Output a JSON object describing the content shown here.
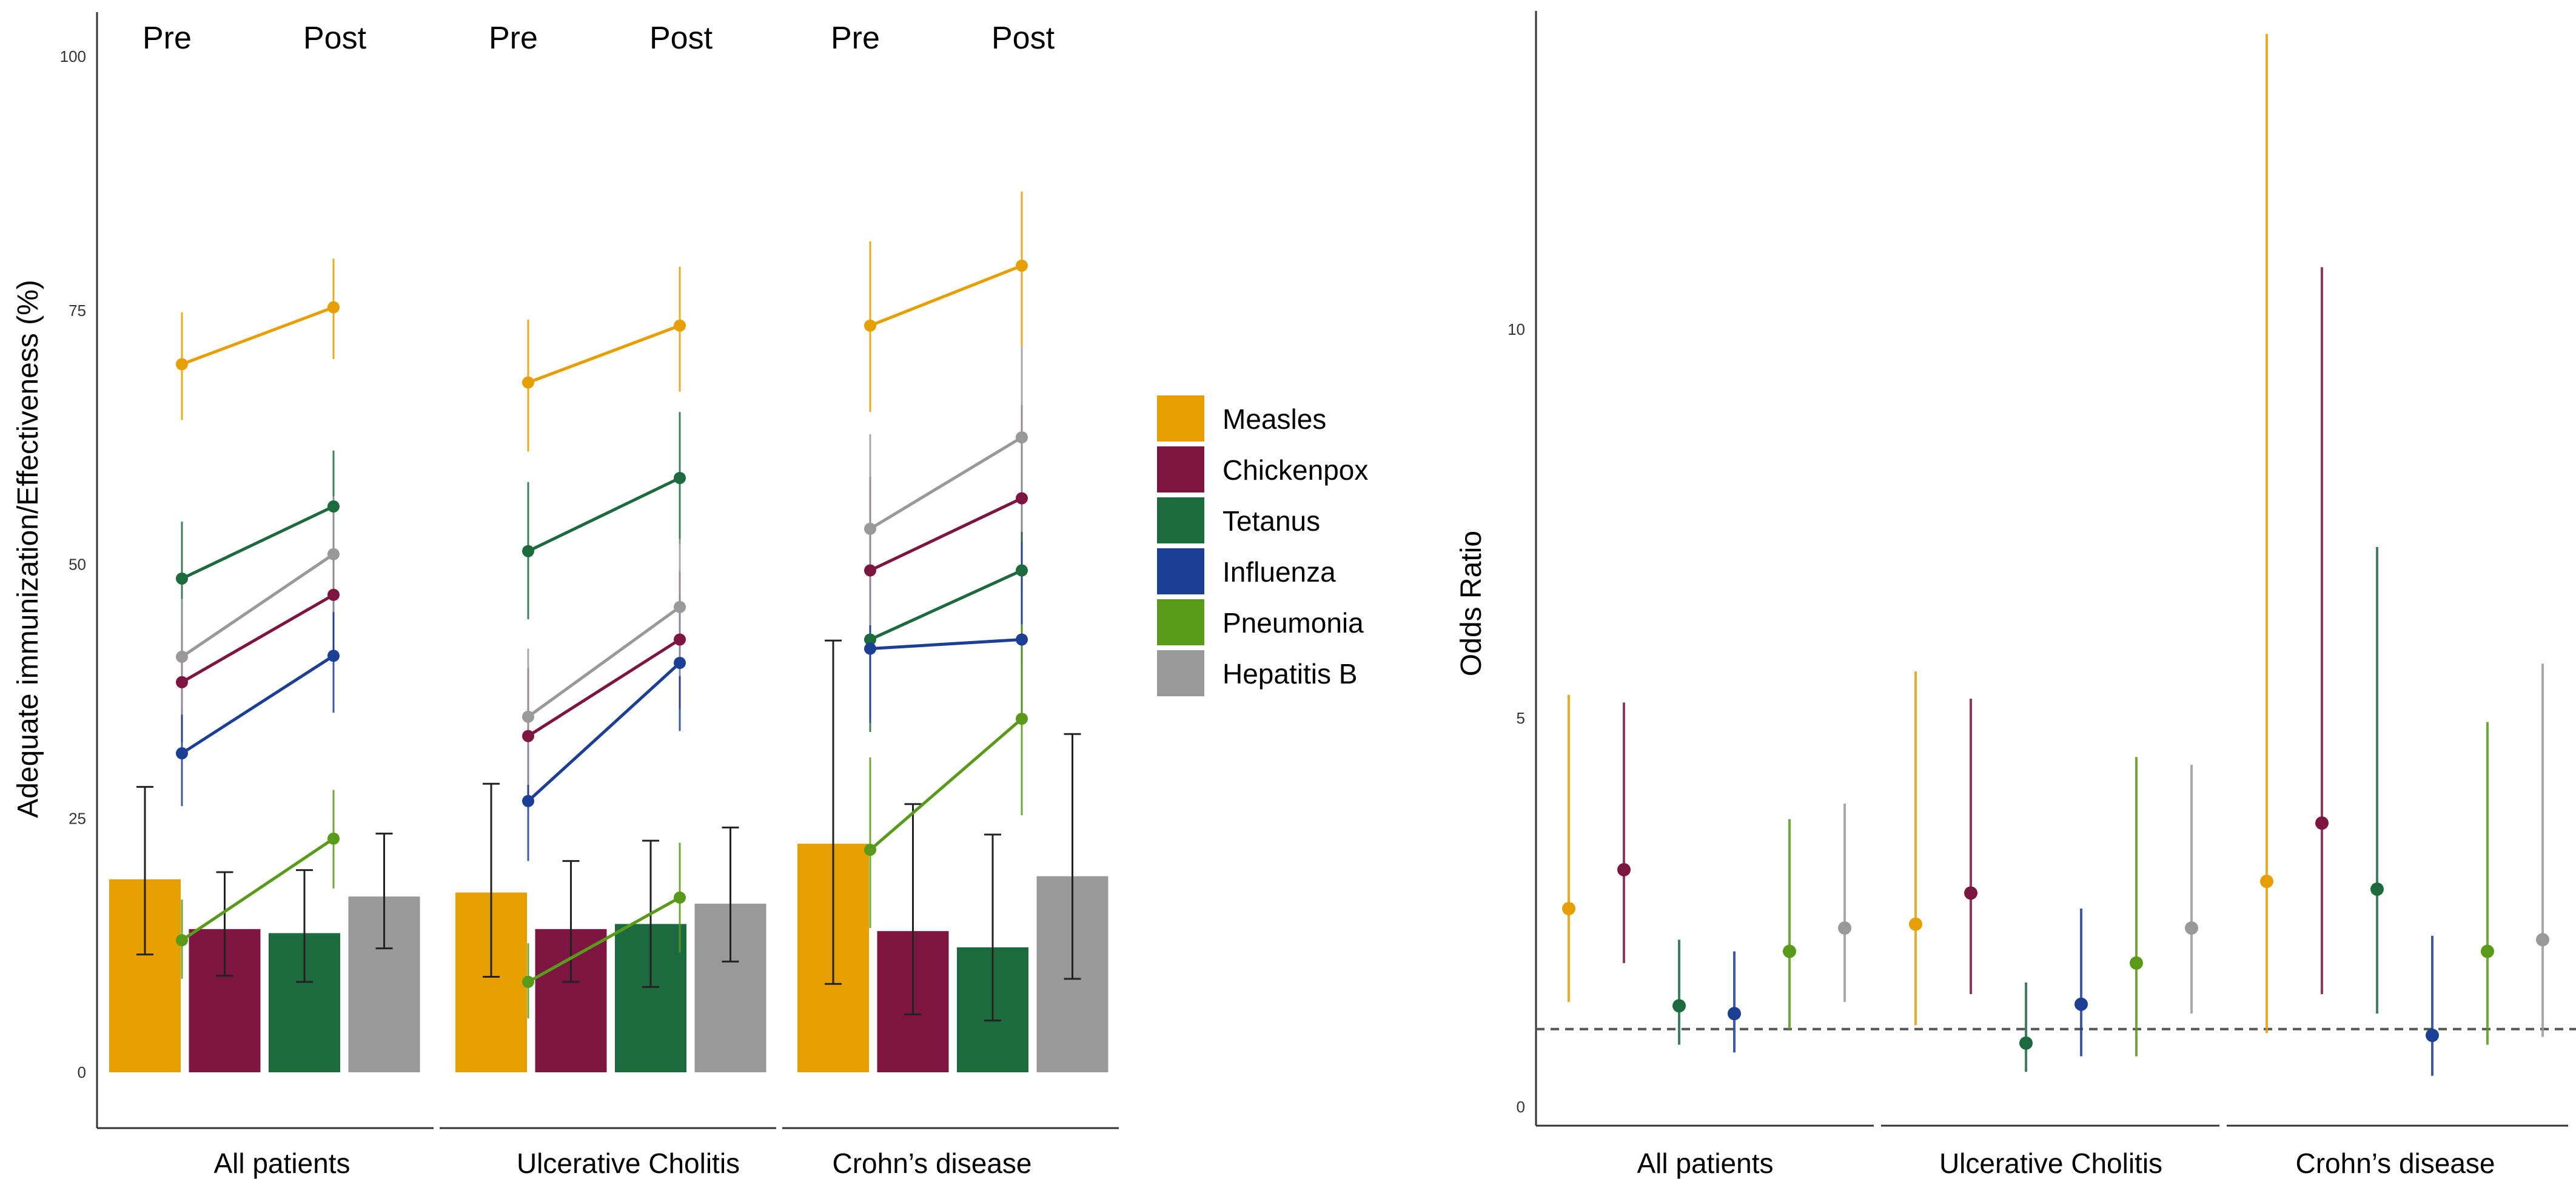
{
  "colors": {
    "Measles": "#E69F00",
    "Chickenpox": "#7D1541",
    "Tetanus": "#1D6A3F",
    "Influenza": "#1B3F94",
    "Pneumonia": "#5A9A1A",
    "Hepatitis B": "#999999"
  },
  "chart_data": [
    {
      "type": "line",
      "panel": "left",
      "title": "",
      "xlabel": "",
      "ylabel": "Adequate immunization/Effectiveness (%)",
      "ylim": [
        0,
        100
      ],
      "yticks": [
        "0",
        "25",
        "50",
        "75",
        "100"
      ],
      "groups": [
        "All patients",
        "Ulcerative Cholitis",
        "Crohn’s disease"
      ],
      "phases": [
        "Pre",
        "Post"
      ],
      "legend": [
        "Measles",
        "Chickenpox",
        "Tetanus",
        "Influenza",
        "Pneumonia",
        "Hepatitis B"
      ],
      "lines": [
        {
          "name": "Measles",
          "groups": [
            {
              "pre": 69.7,
              "pre_ci": [
                64.2,
                74.8
              ],
              "post": 75.3,
              "post_ci": [
                70.2,
                80.1
              ]
            },
            {
              "pre": 67.9,
              "pre_ci": [
                61.1,
                74.1
              ],
              "post": 73.5,
              "post_ci": [
                67.0,
                79.3
              ]
            },
            {
              "pre": 73.5,
              "pre_ci": [
                65.0,
                81.8
              ],
              "post": 79.4,
              "post_ci": [
                71.5,
                86.7
              ]
            }
          ]
        },
        {
          "name": "Chickenpox",
          "groups": [
            {
              "pre": 38.4,
              "pre_ci": [
                32.5,
                44.3
              ],
              "post": 47.0,
              "post_ci": [
                41.3,
                53.0
              ]
            },
            {
              "pre": 33.1,
              "pre_ci": [
                26.6,
                39.8
              ],
              "post": 42.6,
              "post_ci": [
                35.8,
                49.3
              ]
            },
            {
              "pre": 49.4,
              "pre_ci": [
                40.0,
                58.6
              ],
              "post": 56.5,
              "post_ci": [
                47.3,
                65.7
              ]
            }
          ]
        },
        {
          "name": "Tetanus",
          "groups": [
            {
              "pre": 48.6,
              "pre_ci": [
                43.0,
                54.2
              ],
              "post": 55.7,
              "post_ci": [
                50.3,
                61.2
              ]
            },
            {
              "pre": 51.3,
              "pre_ci": [
                44.6,
                58.1
              ],
              "post": 58.5,
              "post_ci": [
                52.0,
                65.0
              ]
            },
            {
              "pre": 42.6,
              "pre_ci": [
                33.5,
                52.0
              ],
              "post": 49.4,
              "post_ci": [
                40.1,
                58.6
              ]
            }
          ]
        },
        {
          "name": "Influenza",
          "groups": [
            {
              "pre": 31.4,
              "pre_ci": [
                26.2,
                36.2
              ],
              "post": 41.0,
              "post_ci": [
                35.4,
                46.8
              ]
            },
            {
              "pre": 26.7,
              "pre_ci": [
                20.8,
                32.4
              ],
              "post": 40.3,
              "post_ci": [
                33.6,
                47.0
              ]
            },
            {
              "pre": 41.7,
              "pre_ci": [
                34.4,
                49.0
              ],
              "post": 42.6,
              "post_ci": [
                34.8,
                52.2
              ]
            }
          ]
        },
        {
          "name": "Pneumonia",
          "groups": [
            {
              "pre": 13.0,
              "pre_ci": [
                9.2,
                17.0
              ],
              "post": 23.0,
              "post_ci": [
                18.1,
                27.8
              ]
            },
            {
              "pre": 8.9,
              "pre_ci": [
                5.3,
                12.7
              ],
              "post": 17.2,
              "post_ci": [
                11.8,
                22.6
              ]
            },
            {
              "pre": 21.9,
              "pre_ci": [
                14.2,
                31.0
              ],
              "post": 34.8,
              "post_ci": [
                25.3,
                44.1
              ]
            }
          ]
        },
        {
          "name": "Hepatitis B",
          "groups": [
            {
              "pre": 40.9,
              "pre_ci": [
                35.2,
                46.6
              ],
              "post": 51.0,
              "post_ci": [
                45.3,
                56.7
              ]
            },
            {
              "pre": 35.0,
              "pre_ci": [
                28.3,
                41.7
              ],
              "post": 45.8,
              "post_ci": [
                39.0,
                52.5
              ]
            },
            {
              "pre": 53.5,
              "pre_ci": [
                44.0,
                62.8
              ],
              "post": 62.5,
              "post_ci": [
                53.2,
                71.5
              ]
            }
          ]
        }
      ],
      "bars": [
        {
          "group": "All patients",
          "series": [
            {
              "name": "Measles",
              "value": 19.0,
              "ci": [
                11.6,
                28.1
              ]
            },
            {
              "name": "Chickenpox",
              "value": 14.1,
              "ci": [
                9.5,
                19.7
              ]
            },
            {
              "name": "Tetanus",
              "value": 13.7,
              "ci": [
                8.9,
                19.9
              ]
            },
            {
              "name": "Hepatitis B",
              "value": 17.3,
              "ci": [
                12.2,
                23.5
              ]
            }
          ]
        },
        {
          "group": "Ulcerative Cholitis",
          "series": [
            {
              "name": "Measles",
              "value": 17.7,
              "ci": [
                9.4,
                28.4
              ]
            },
            {
              "name": "Chickenpox",
              "value": 14.1,
              "ci": [
                8.9,
                20.8
              ]
            },
            {
              "name": "Tetanus",
              "value": 14.6,
              "ci": [
                8.4,
                22.8
              ]
            },
            {
              "name": "Hepatitis B",
              "value": 16.6,
              "ci": [
                10.9,
                24.1
              ]
            }
          ]
        },
        {
          "group": "Crohn’s disease",
          "series": [
            {
              "name": "Measles",
              "value": 22.5,
              "ci": [
                8.7,
                42.5
              ]
            },
            {
              "name": "Chickenpox",
              "value": 13.9,
              "ci": [
                5.7,
                26.4
              ]
            },
            {
              "name": "Tetanus",
              "value": 12.3,
              "ci": [
                5.1,
                23.4
              ]
            },
            {
              "name": "Hepatitis B",
              "value": 19.3,
              "ci": [
                9.2,
                33.3
              ]
            }
          ]
        }
      ]
    },
    {
      "type": "scatter",
      "panel": "right",
      "title": "",
      "xlabel": "",
      "ylabel": "Odds Ratio",
      "ylim": [
        -0.2,
        14.2
      ],
      "yticks": [
        "0",
        "5",
        "10"
      ],
      "reference_line": 1,
      "groups": [
        "All patients",
        "Ulcerative Cholitis",
        "Crohn’s disease"
      ],
      "series": [
        {
          "name": "Measles",
          "values": [
            {
              "group": "All patients",
              "or": 2.55,
              "ci": [
                1.35,
                5.3
              ]
            },
            {
              "group": "Ulcerative Cholitis",
              "or": 2.35,
              "ci": [
                1.05,
                5.6
              ]
            },
            {
              "group": "Crohn’s disease",
              "or": 2.9,
              "ci": [
                0.95,
                13.8
              ]
            }
          ]
        },
        {
          "name": "Chickenpox",
          "values": [
            {
              "group": "All patients",
              "or": 3.05,
              "ci": [
                1.85,
                5.2
              ]
            },
            {
              "group": "Ulcerative Cholitis",
              "or": 2.75,
              "ci": [
                1.45,
                5.25
              ]
            },
            {
              "group": "Crohn’s disease",
              "or": 3.65,
              "ci": [
                1.45,
                10.8
              ]
            }
          ]
        },
        {
          "name": "Tetanus",
          "values": [
            {
              "group": "All patients",
              "or": 1.3,
              "ci": [
                0.8,
                2.15
              ]
            },
            {
              "group": "Ulcerative Cholitis",
              "or": 0.82,
              "ci": [
                0.45,
                1.6
              ]
            },
            {
              "group": "Crohn’s disease",
              "or": 2.8,
              "ci": [
                1.2,
                7.2
              ]
            }
          ]
        },
        {
          "name": "Influenza",
          "values": [
            {
              "group": "All patients",
              "or": 1.2,
              "ci": [
                0.7,
                2.0
              ]
            },
            {
              "group": "Ulcerative Cholitis",
              "or": 1.32,
              "ci": [
                0.65,
                2.55
              ]
            },
            {
              "group": "Crohn’s disease",
              "or": 0.92,
              "ci": [
                0.4,
                2.2
              ]
            }
          ]
        },
        {
          "name": "Pneumonia",
          "values": [
            {
              "group": "All patients",
              "or": 2.0,
              "ci": [
                1.0,
                3.7
              ]
            },
            {
              "group": "Ulcerative Cholitis",
              "or": 1.85,
              "ci": [
                0.65,
                4.5
              ]
            },
            {
              "group": "Crohn’s disease",
              "or": 2.0,
              "ci": [
                0.8,
                4.95
              ]
            }
          ]
        },
        {
          "name": "Hepatitis B",
          "values": [
            {
              "group": "All patients",
              "or": 2.3,
              "ci": [
                1.35,
                3.9
              ]
            },
            {
              "group": "Ulcerative Cholitis",
              "or": 2.3,
              "ci": [
                1.2,
                4.4
              ]
            },
            {
              "group": "Crohn’s disease",
              "or": 2.15,
              "ci": [
                0.9,
                5.7
              ]
            }
          ]
        }
      ]
    }
  ]
}
